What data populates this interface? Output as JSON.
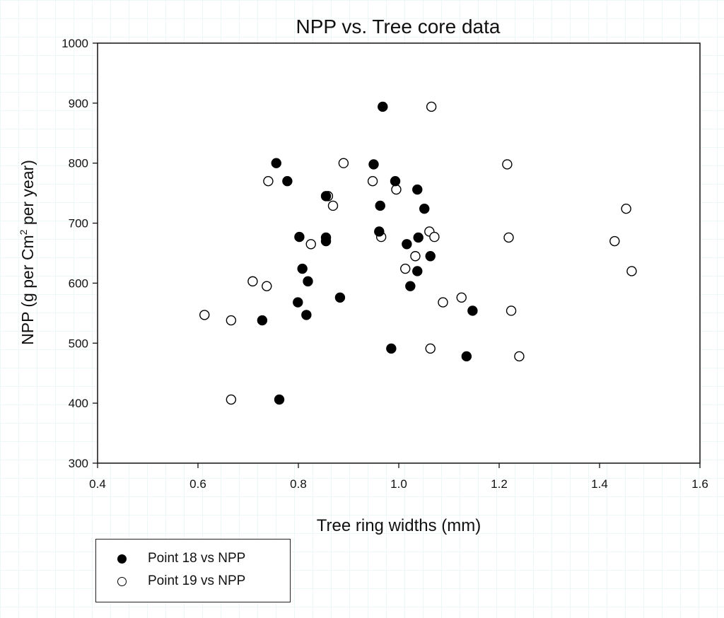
{
  "chart_data": {
    "type": "scatter",
    "title": "NPP vs. Tree core data",
    "xlabel": "Tree ring widths (mm)",
    "ylabel": "NPP (g per Cm² per year)",
    "ylabel_parts": {
      "before": "NPP (g per Cm",
      "sup": "2",
      "after": " per year)"
    },
    "xlim": [
      0.4,
      1.6
    ],
    "ylim": [
      300,
      1000
    ],
    "xticks": [
      "0.4",
      "0.6",
      "0.8",
      "1.0",
      "1.2",
      "1.4",
      "1.6"
    ],
    "yticks": [
      "300",
      "400",
      "500",
      "600",
      "700",
      "800",
      "900",
      "1000"
    ],
    "grid": false,
    "legend_position": "below-left",
    "series": [
      {
        "name": "Point 18 vs NPP",
        "marker": "filled",
        "color": "#000000",
        "points": [
          [
            0.968,
            894
          ],
          [
            0.756,
            800
          ],
          [
            0.95,
            798
          ],
          [
            0.778,
            770
          ],
          [
            0.993,
            770
          ],
          [
            1.037,
            756
          ],
          [
            0.855,
            745
          ],
          [
            0.963,
            729
          ],
          [
            1.051,
            724
          ],
          [
            0.961,
            686
          ],
          [
            0.802,
            677
          ],
          [
            0.855,
            676
          ],
          [
            1.039,
            676
          ],
          [
            0.855,
            670
          ],
          [
            1.016,
            665
          ],
          [
            1.063,
            645
          ],
          [
            0.808,
            624
          ],
          [
            1.037,
            620
          ],
          [
            0.819,
            603
          ],
          [
            1.023,
            595
          ],
          [
            0.883,
            576
          ],
          [
            0.799,
            568
          ],
          [
            1.147,
            554
          ],
          [
            0.816,
            547
          ],
          [
            0.728,
            538
          ],
          [
            0.985,
            491
          ],
          [
            1.135,
            478
          ],
          [
            0.762,
            406
          ]
        ]
      },
      {
        "name": "Point 19 vs NPP",
        "marker": "open",
        "color": "#000000",
        "points": [
          [
            1.065,
            894
          ],
          [
            0.89,
            800
          ],
          [
            1.216,
            798
          ],
          [
            0.74,
            770
          ],
          [
            0.948,
            770
          ],
          [
            0.995,
            756
          ],
          [
            0.859,
            745
          ],
          [
            0.869,
            729
          ],
          [
            1.453,
            724
          ],
          [
            1.061,
            686
          ],
          [
            1.071,
            677
          ],
          [
            0.965,
            677
          ],
          [
            1.219,
            676
          ],
          [
            1.43,
            670
          ],
          [
            0.825,
            665
          ],
          [
            1.033,
            645
          ],
          [
            1.013,
            624
          ],
          [
            1.464,
            620
          ],
          [
            0.709,
            603
          ],
          [
            0.737,
            595
          ],
          [
            1.125,
            576
          ],
          [
            1.088,
            568
          ],
          [
            1.224,
            554
          ],
          [
            0.613,
            547
          ],
          [
            0.666,
            538
          ],
          [
            1.063,
            491
          ],
          [
            1.24,
            478
          ],
          [
            0.666,
            406
          ]
        ]
      }
    ]
  }
}
